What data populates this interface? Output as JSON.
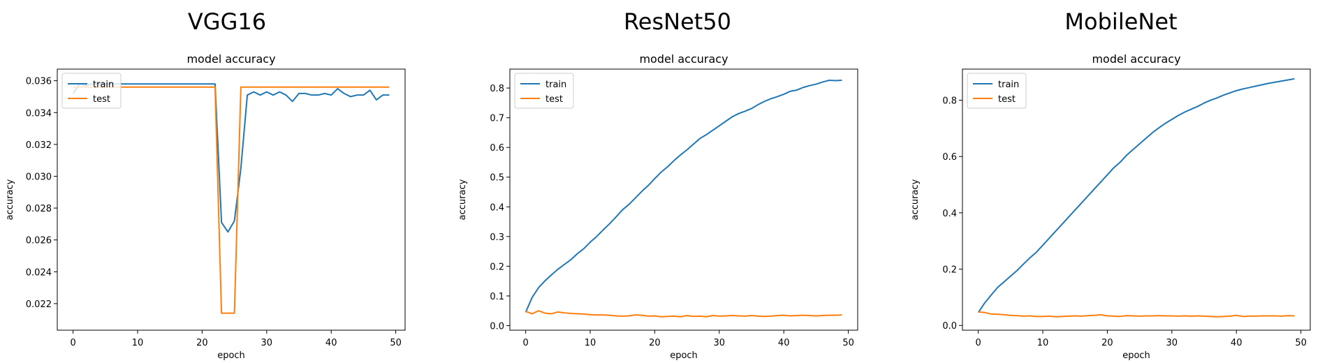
{
  "panels": [
    {
      "heading": "VGG16"
    },
    {
      "heading": "ResNet50"
    },
    {
      "heading": "MobileNet"
    }
  ],
  "colors": {
    "train": "#1f77b4",
    "test": "#ff7f0e"
  },
  "chart_data": [
    {
      "type": "line",
      "title": "model accuracy",
      "xlabel": "epoch",
      "ylabel": "accuracy",
      "xlim": [
        -2.45,
        51.45
      ],
      "ylim": [
        0.02033,
        0.03673
      ],
      "xticks": [
        0,
        10,
        20,
        30,
        40,
        50
      ],
      "xtick_labels": [
        "0",
        "10",
        "20",
        "30",
        "40",
        "50"
      ],
      "yticks": [
        0.022,
        0.024,
        0.026,
        0.028,
        0.03,
        0.032,
        0.034,
        0.036
      ],
      "ytick_labels": [
        "0.022",
        "0.024",
        "0.026",
        "0.028",
        "0.030",
        "0.032",
        "0.034",
        "0.036"
      ],
      "legend": {
        "location": "upper left",
        "entries": [
          "train",
          "test"
        ]
      },
      "x": [
        0,
        1,
        2,
        3,
        4,
        5,
        6,
        7,
        8,
        9,
        10,
        11,
        12,
        13,
        14,
        15,
        16,
        17,
        18,
        19,
        20,
        21,
        22,
        23,
        24,
        25,
        26,
        27,
        28,
        29,
        30,
        31,
        32,
        33,
        34,
        35,
        36,
        37,
        38,
        39,
        40,
        41,
        42,
        43,
        44,
        45,
        46,
        47,
        48,
        49
      ],
      "series": [
        {
          "name": "train",
          "values": [
            0.0352,
            0.0358,
            0.0357,
            0.0358,
            0.0358,
            0.0358,
            0.0358,
            0.0358,
            0.0358,
            0.0358,
            0.0358,
            0.0358,
            0.0358,
            0.0358,
            0.0358,
            0.0358,
            0.0358,
            0.0358,
            0.0358,
            0.0358,
            0.0358,
            0.0358,
            0.0358,
            0.0271,
            0.0265,
            0.0272,
            0.0305,
            0.0351,
            0.0353,
            0.0351,
            0.0353,
            0.0351,
            0.0353,
            0.0351,
            0.0347,
            0.0352,
            0.0352,
            0.0351,
            0.0351,
            0.0352,
            0.0351,
            0.0355,
            0.0352,
            0.035,
            0.0351,
            0.0351,
            0.0354,
            0.0348,
            0.0351,
            0.0351
          ]
        },
        {
          "name": "test",
          "values": [
            0.0356,
            0.0356,
            0.0356,
            0.0356,
            0.0356,
            0.0356,
            0.0356,
            0.0356,
            0.0356,
            0.0356,
            0.0356,
            0.0356,
            0.0356,
            0.0356,
            0.0356,
            0.0356,
            0.0356,
            0.0356,
            0.0356,
            0.0356,
            0.0356,
            0.0356,
            0.0356,
            0.0214,
            0.0214,
            0.0214,
            0.0356,
            0.0356,
            0.0356,
            0.0356,
            0.0356,
            0.0356,
            0.0356,
            0.0356,
            0.0356,
            0.0356,
            0.0356,
            0.0356,
            0.0356,
            0.0356,
            0.0356,
            0.0356,
            0.0356,
            0.0356,
            0.0356,
            0.0356,
            0.0356,
            0.0356,
            0.0356,
            0.0356
          ]
        }
      ]
    },
    {
      "type": "line",
      "title": "model accuracy",
      "xlabel": "epoch",
      "ylabel": "accuracy",
      "xlim": [
        -2.45,
        51.45
      ],
      "ylim": [
        -0.0153,
        0.8637
      ],
      "xticks": [
        0,
        10,
        20,
        30,
        40,
        50
      ],
      "xtick_labels": [
        "0",
        "10",
        "20",
        "30",
        "40",
        "50"
      ],
      "yticks": [
        0.0,
        0.1,
        0.2,
        0.3,
        0.4,
        0.5,
        0.6,
        0.7,
        0.8
      ],
      "ytick_labels": [
        "0.0",
        "0.1",
        "0.2",
        "0.3",
        "0.4",
        "0.5",
        "0.6",
        "0.7",
        "0.8"
      ],
      "legend": {
        "location": "upper left",
        "entries": [
          "train",
          "test"
        ]
      },
      "x": [
        0,
        1,
        2,
        3,
        4,
        5,
        6,
        7,
        8,
        9,
        10,
        11,
        12,
        13,
        14,
        15,
        16,
        17,
        18,
        19,
        20,
        21,
        22,
        23,
        24,
        25,
        26,
        27,
        28,
        29,
        30,
        31,
        32,
        33,
        34,
        35,
        36,
        37,
        38,
        39,
        40,
        41,
        42,
        43,
        44,
        45,
        46,
        47,
        48,
        49
      ],
      "series": [
        {
          "name": "train",
          "values": [
            0.045,
            0.095,
            0.128,
            0.151,
            0.171,
            0.19,
            0.206,
            0.222,
            0.242,
            0.259,
            0.281,
            0.3,
            0.322,
            0.343,
            0.366,
            0.39,
            0.408,
            0.43,
            0.452,
            0.472,
            0.495,
            0.517,
            0.535,
            0.556,
            0.575,
            0.592,
            0.611,
            0.63,
            0.643,
            0.658,
            0.673,
            0.688,
            0.703,
            0.714,
            0.722,
            0.731,
            0.744,
            0.755,
            0.764,
            0.771,
            0.779,
            0.789,
            0.793,
            0.802,
            0.808,
            0.813,
            0.82,
            0.826,
            0.825,
            0.826
          ]
        },
        {
          "name": "test",
          "values": [
            0.048,
            0.04,
            0.05,
            0.042,
            0.04,
            0.046,
            0.043,
            0.041,
            0.04,
            0.039,
            0.037,
            0.036,
            0.036,
            0.035,
            0.033,
            0.032,
            0.033,
            0.036,
            0.035,
            0.032,
            0.033,
            0.03,
            0.031,
            0.032,
            0.03,
            0.034,
            0.031,
            0.032,
            0.03,
            0.034,
            0.032,
            0.033,
            0.034,
            0.033,
            0.032,
            0.034,
            0.032,
            0.031,
            0.032,
            0.034,
            0.035,
            0.033,
            0.034,
            0.035,
            0.034,
            0.033,
            0.034,
            0.035,
            0.035,
            0.036
          ]
        }
      ]
    },
    {
      "type": "line",
      "title": "model accuracy",
      "xlabel": "epoch",
      "ylabel": "accuracy",
      "xlim": [
        -2.45,
        51.45
      ],
      "ylim": [
        -0.0168,
        0.9105
      ],
      "xticks": [
        0,
        10,
        20,
        30,
        40,
        50
      ],
      "xtick_labels": [
        "0",
        "10",
        "20",
        "30",
        "40",
        "50"
      ],
      "yticks": [
        0.0,
        0.2,
        0.4,
        0.6,
        0.8
      ],
      "ytick_labels": [
        "0.0",
        "0.2",
        "0.4",
        "0.6",
        "0.8"
      ],
      "legend": {
        "location": "upper left",
        "entries": [
          "train",
          "test"
        ]
      },
      "x": [
        0,
        1,
        2,
        3,
        4,
        5,
        6,
        7,
        8,
        9,
        10,
        11,
        12,
        13,
        14,
        15,
        16,
        17,
        18,
        19,
        20,
        21,
        22,
        23,
        24,
        25,
        26,
        27,
        28,
        29,
        30,
        31,
        32,
        33,
        34,
        35,
        36,
        37,
        38,
        39,
        40,
        41,
        42,
        43,
        44,
        45,
        46,
        47,
        48,
        49
      ],
      "series": [
        {
          "name": "train",
          "values": [
            0.046,
            0.08,
            0.108,
            0.135,
            0.155,
            0.175,
            0.195,
            0.218,
            0.24,
            0.26,
            0.285,
            0.31,
            0.335,
            0.36,
            0.385,
            0.41,
            0.435,
            0.46,
            0.485,
            0.51,
            0.535,
            0.56,
            0.58,
            0.605,
            0.625,
            0.645,
            0.665,
            0.685,
            0.702,
            0.718,
            0.732,
            0.746,
            0.758,
            0.768,
            0.778,
            0.79,
            0.8,
            0.808,
            0.818,
            0.826,
            0.834,
            0.84,
            0.845,
            0.85,
            0.855,
            0.86,
            0.864,
            0.868,
            0.872,
            0.876
          ]
        },
        {
          "name": "test",
          "values": [
            0.048,
            0.046,
            0.041,
            0.04,
            0.038,
            0.036,
            0.035,
            0.033,
            0.034,
            0.032,
            0.032,
            0.033,
            0.031,
            0.032,
            0.033,
            0.034,
            0.033,
            0.035,
            0.036,
            0.038,
            0.034,
            0.033,
            0.032,
            0.035,
            0.034,
            0.033,
            0.034,
            0.034,
            0.035,
            0.034,
            0.034,
            0.033,
            0.034,
            0.033,
            0.034,
            0.033,
            0.032,
            0.031,
            0.032,
            0.033,
            0.036,
            0.032,
            0.033,
            0.033,
            0.034,
            0.034,
            0.034,
            0.033,
            0.035,
            0.034
          ]
        }
      ]
    }
  ]
}
